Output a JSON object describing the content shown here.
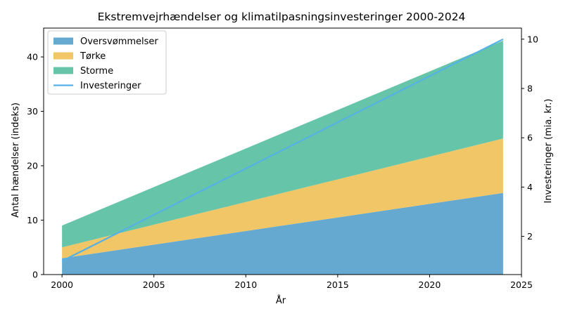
{
  "colors": {
    "floods": "#66a9d0",
    "drought": "#f0c667",
    "storms": "#66c5a9",
    "investments": "#55b0e6"
  },
  "chart_data": {
    "type": "area",
    "title": "Ekstremvejrhændelser og klimatilpasningsinvesteringer 2000-2024",
    "xlabel": "År",
    "ylabel": "Antal hændelser (indeks)",
    "y2label": "Investeringer (mia. kr.)",
    "stacked": true,
    "xlim": [
      1999,
      2025
    ],
    "ylim": [
      0,
      45.3
    ],
    "y2lim": [
      0.45,
      10.45
    ],
    "x_ticks": [
      2000,
      2005,
      2010,
      2015,
      2020,
      2025
    ],
    "y_ticks": [
      0,
      10,
      20,
      30,
      40
    ],
    "y2_ticks": [
      2,
      4,
      6,
      8,
      10
    ],
    "legend_position": "top-left",
    "x": [
      2000,
      2024
    ],
    "series": [
      {
        "name": "Oversvømmelser",
        "axis": "left",
        "kind": "area",
        "color_key": "floods",
        "values": [
          3,
          15
        ]
      },
      {
        "name": "Tørke",
        "axis": "left",
        "kind": "area",
        "color_key": "drought",
        "values": [
          2,
          10
        ]
      },
      {
        "name": "Storme",
        "axis": "left",
        "kind": "area",
        "color_key": "storms",
        "values": [
          4,
          18
        ]
      },
      {
        "name": "Investeringer",
        "axis": "right",
        "kind": "line",
        "color_key": "investments",
        "values": [
          1.0,
          10.0
        ]
      }
    ]
  }
}
